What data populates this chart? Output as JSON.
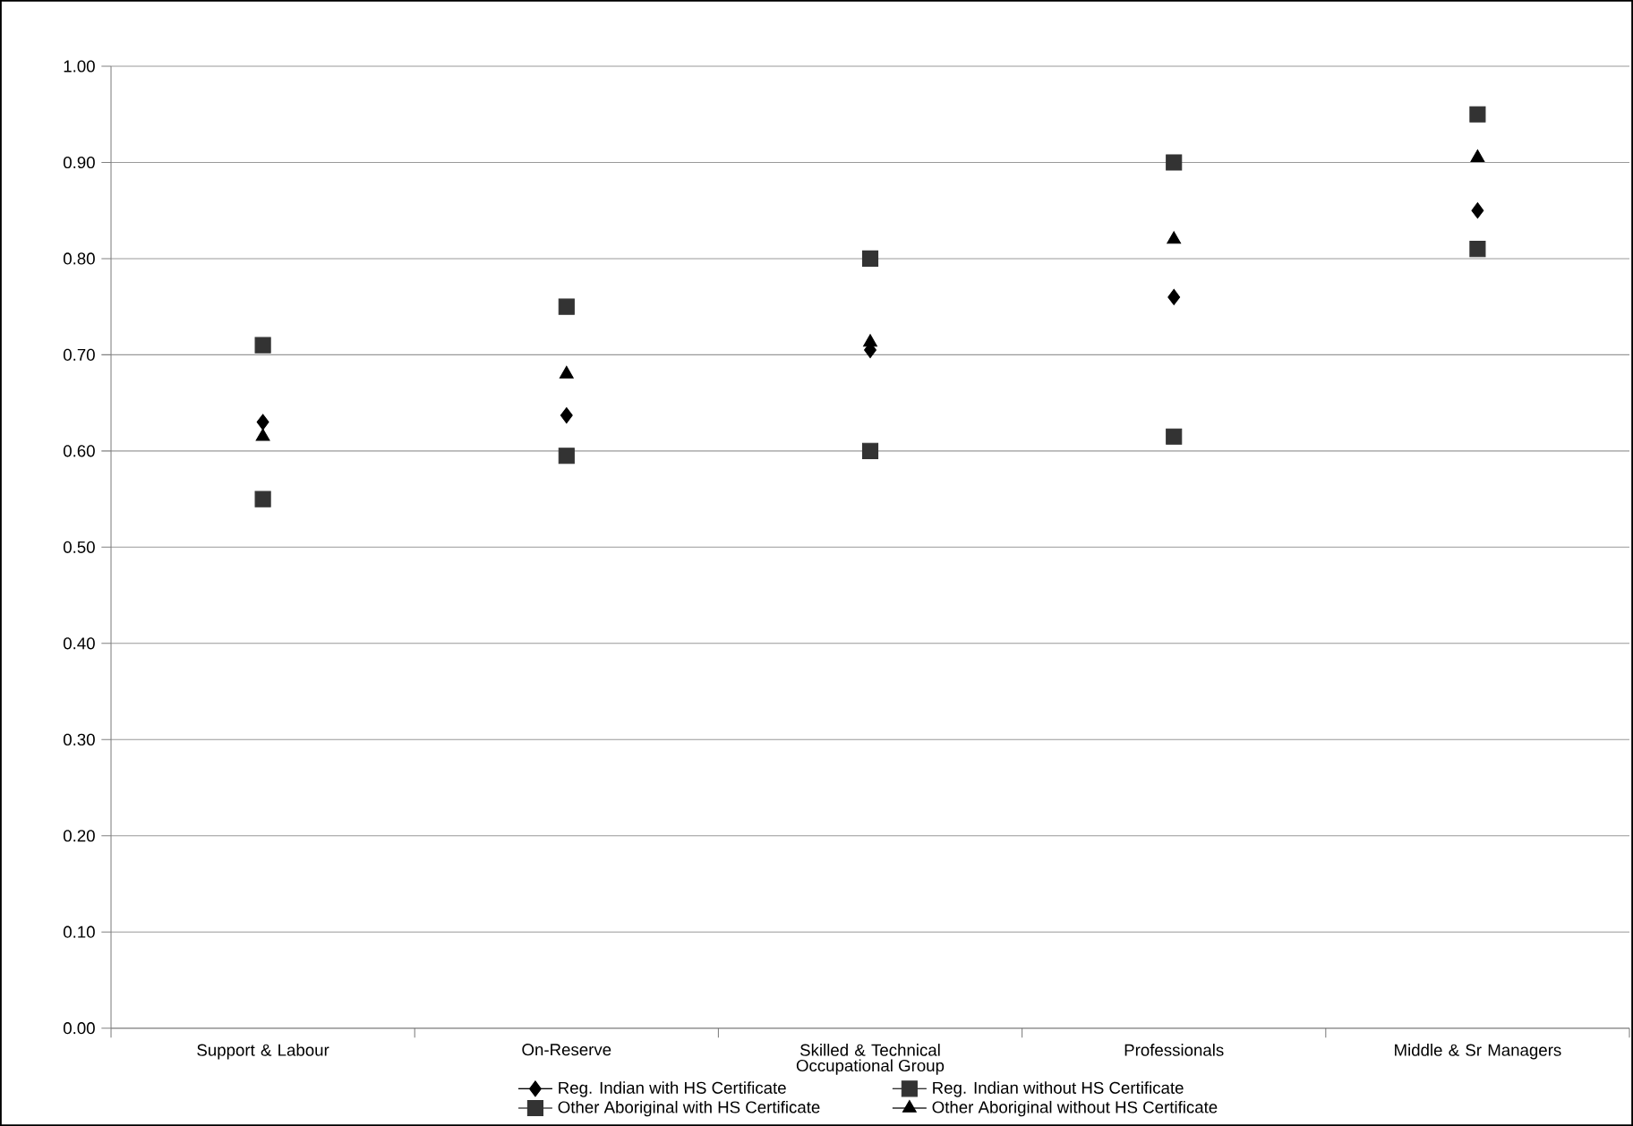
{
  "chart_data": {
    "type": "scatter",
    "xlabel": "Occupational Group",
    "categories": [
      "Support & Labour",
      "On-Reserve",
      "Skilled & Technical",
      "Professionals",
      "Middle & Sr Managers"
    ],
    "series": [
      {
        "name": "Reg. Indian with HS Certificate",
        "color": "#000000",
        "marker": "diamond",
        "values": [
          0.63,
          0.637,
          0.705,
          0.76,
          0.85
        ]
      },
      {
        "name": "Reg. Indian without HS Certificate",
        "color": "#333333",
        "marker": "square",
        "values": [
          0.55,
          0.595,
          0.6,
          0.615,
          0.81
        ]
      },
      {
        "name": "Other Aboriginal with HS Certificate",
        "color": "#333333",
        "marker": "square",
        "values": [
          0.71,
          0.75,
          0.8,
          0.9,
          0.95
        ]
      },
      {
        "name": "Other Aboriginal without HS Certificate",
        "color": "#000000",
        "marker": "triangle",
        "values": [
          0.615,
          0.68,
          0.713,
          0.82,
          0.905
        ]
      }
    ],
    "ylim": [
      0,
      1
    ],
    "yticks": [
      {
        "value": 0,
        "label": "0.00"
      },
      {
        "value": 0.1,
        "label": "0.10"
      },
      {
        "value": 0.2,
        "label": "0.20"
      },
      {
        "value": 0.3,
        "label": "0.30"
      },
      {
        "value": 0.4,
        "label": "0.40"
      },
      {
        "value": 0.5,
        "label": "0.50"
      },
      {
        "value": 0.6,
        "label": "0.60"
      },
      {
        "value": 0.7,
        "label": "0.70"
      },
      {
        "value": 0.8,
        "label": "0.80"
      },
      {
        "value": 0.9,
        "label": "0.90"
      },
      {
        "value": 1,
        "label": "1.00"
      }
    ],
    "grid": "y",
    "legend": "bottom"
  }
}
